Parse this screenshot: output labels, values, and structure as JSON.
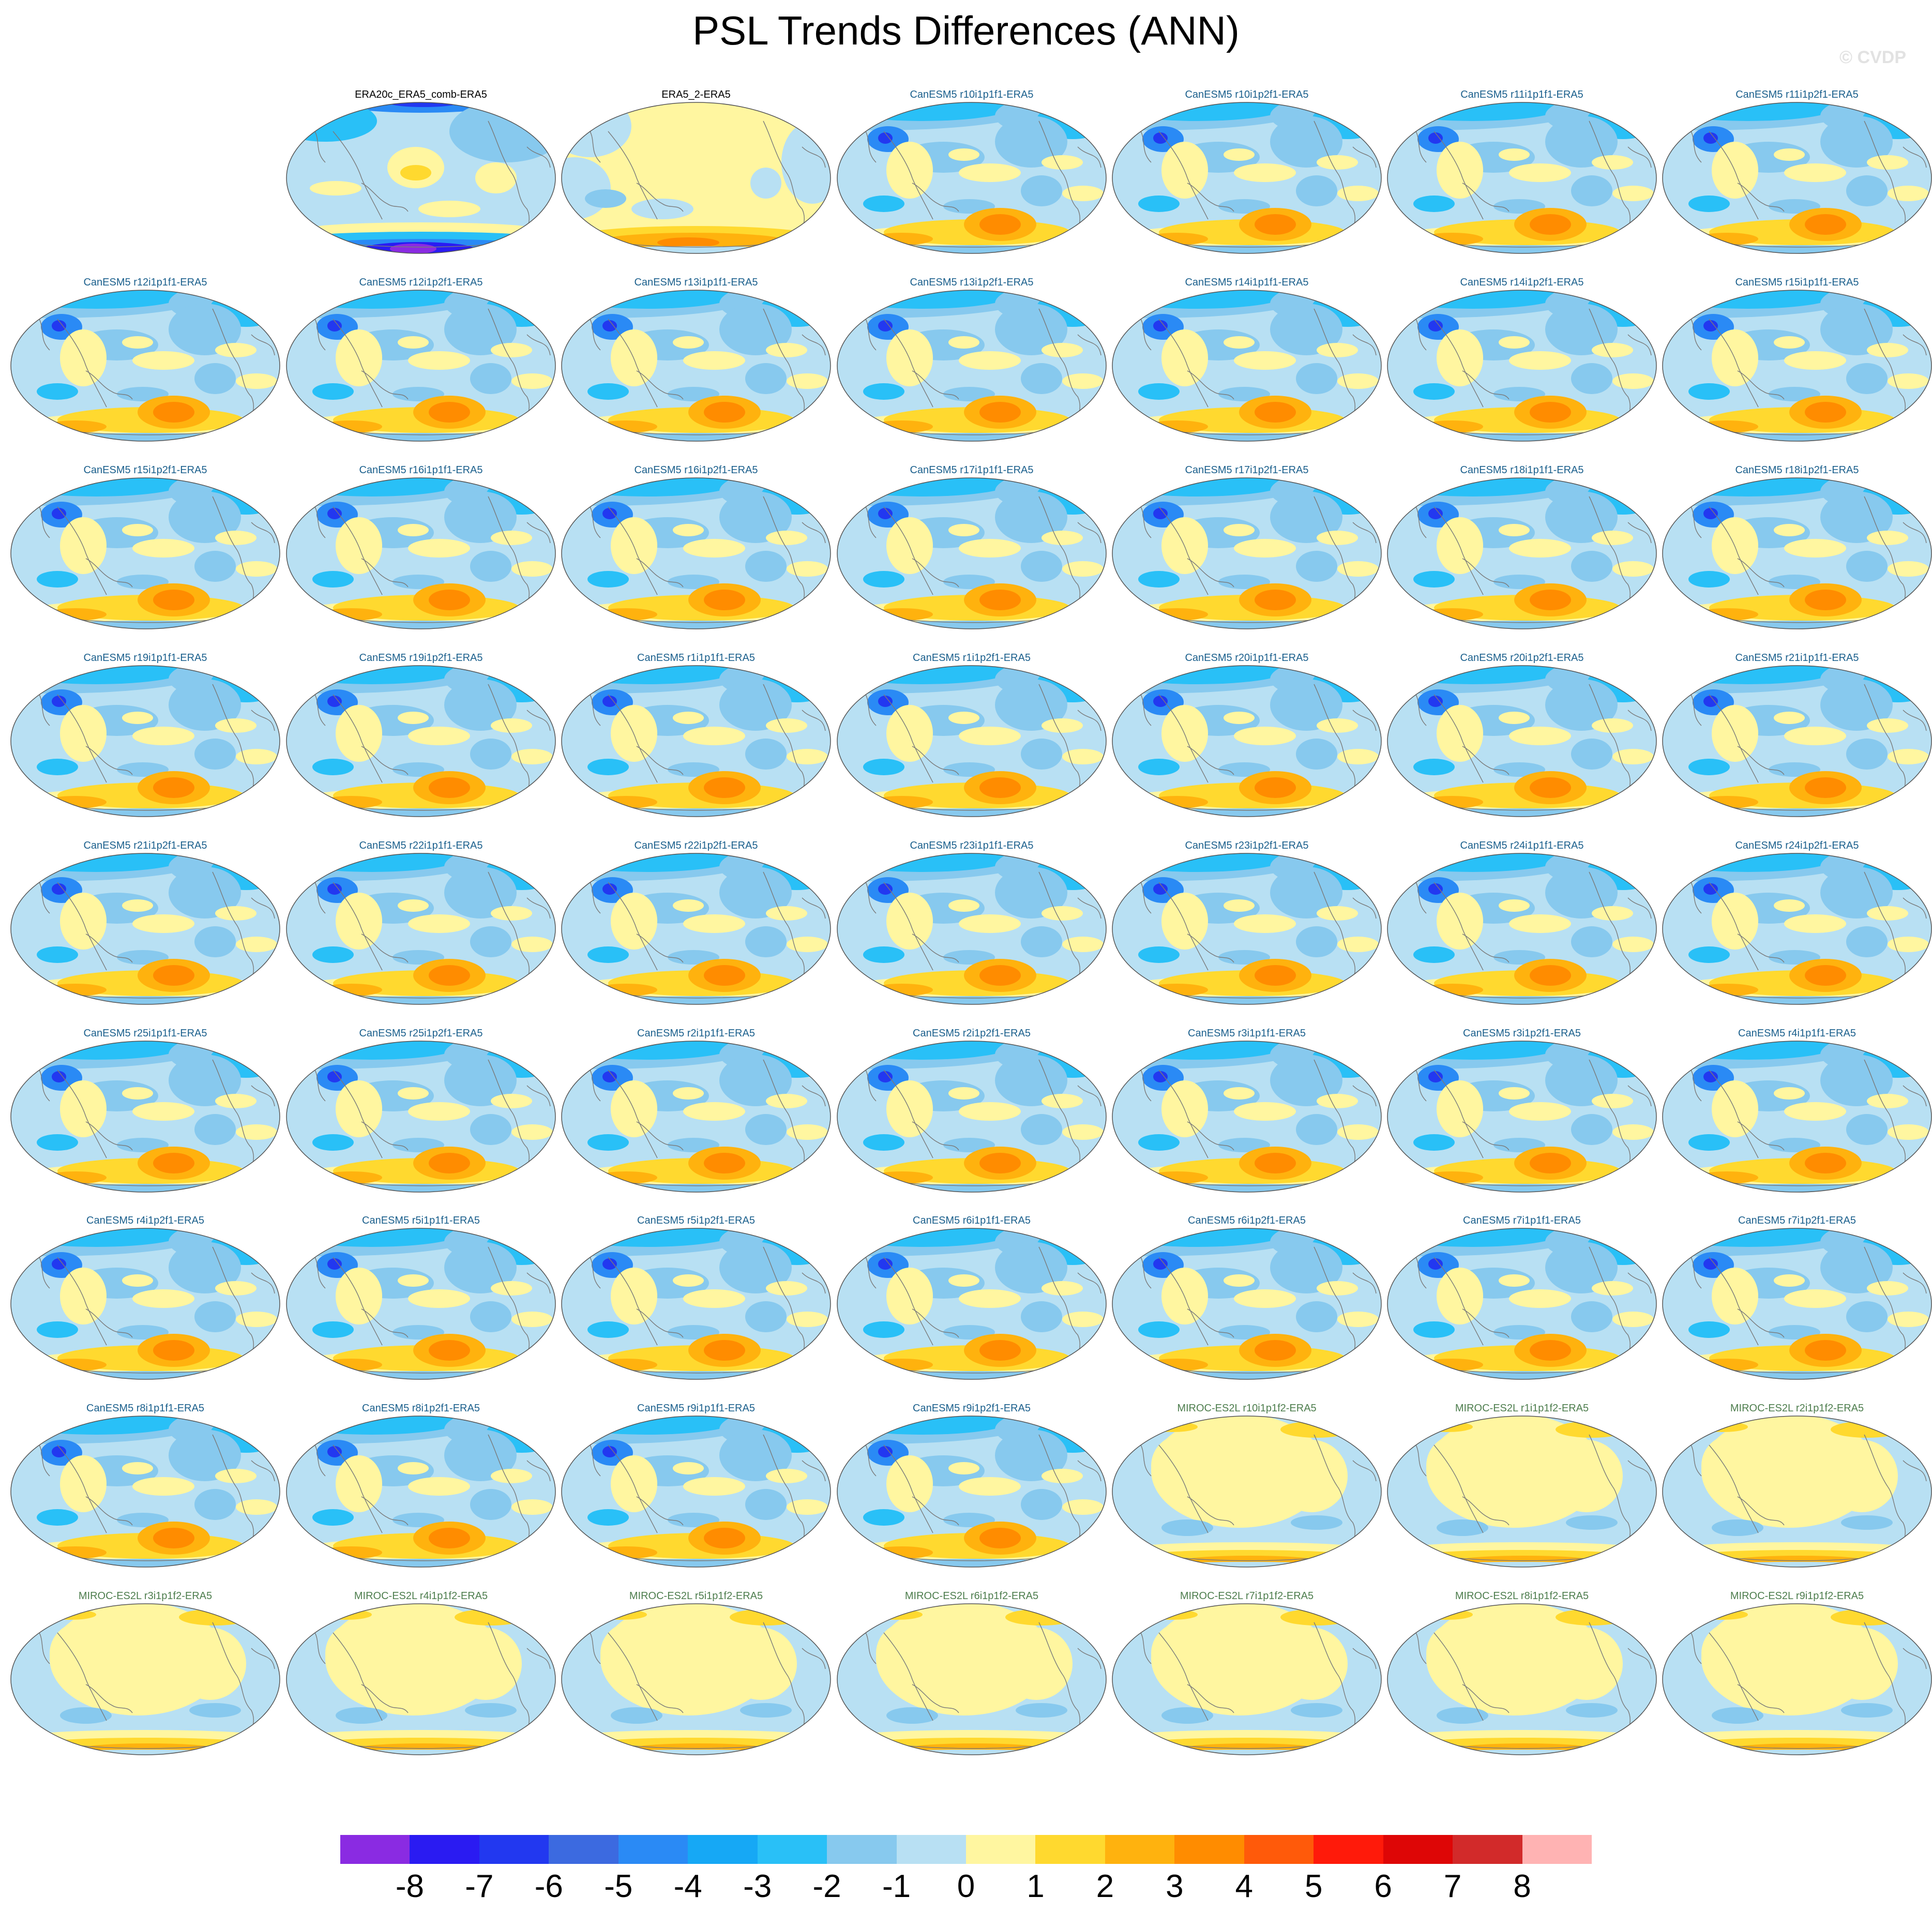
{
  "chart_data": {
    "type": "map_panel_grid",
    "title": "PSL Trends Differences (ANN)",
    "watermark": "© CVDP",
    "variable": "PSL trend difference",
    "season": "ANN",
    "layout": {
      "columns": 7,
      "rows": 9,
      "first_row_offset_columns": 1
    },
    "panels": [
      {
        "title": "ERA20c_ERA5_comb-ERA5",
        "group": "obs",
        "pattern": "era20c"
      },
      {
        "title": "ERA5_2-ERA5",
        "group": "obs",
        "pattern": "era5_2"
      },
      {
        "title": "CanESM5 r10i1p1f1-ERA5",
        "group": "canesm",
        "pattern": "canesm"
      },
      {
        "title": "CanESM5 r10i1p2f1-ERA5",
        "group": "canesm",
        "pattern": "canesm"
      },
      {
        "title": "CanESM5 r11i1p1f1-ERA5",
        "group": "canesm",
        "pattern": "canesm"
      },
      {
        "title": "CanESM5 r11i1p2f1-ERA5",
        "group": "canesm",
        "pattern": "canesm"
      },
      {
        "title": "CanESM5 r12i1p1f1-ERA5",
        "group": "canesm",
        "pattern": "canesm"
      },
      {
        "title": "CanESM5 r12i1p2f1-ERA5",
        "group": "canesm",
        "pattern": "canesm"
      },
      {
        "title": "CanESM5 r13i1p1f1-ERA5",
        "group": "canesm",
        "pattern": "canesm"
      },
      {
        "title": "CanESM5 r13i1p2f1-ERA5",
        "group": "canesm",
        "pattern": "canesm"
      },
      {
        "title": "CanESM5 r14i1p1f1-ERA5",
        "group": "canesm",
        "pattern": "canesm"
      },
      {
        "title": "CanESM5 r14i1p2f1-ERA5",
        "group": "canesm",
        "pattern": "canesm"
      },
      {
        "title": "CanESM5 r15i1p1f1-ERA5",
        "group": "canesm",
        "pattern": "canesm"
      },
      {
        "title": "CanESM5 r15i1p2f1-ERA5",
        "group": "canesm",
        "pattern": "canesm"
      },
      {
        "title": "CanESM5 r16i1p1f1-ERA5",
        "group": "canesm",
        "pattern": "canesm"
      },
      {
        "title": "CanESM5 r16i1p2f1-ERA5",
        "group": "canesm",
        "pattern": "canesm"
      },
      {
        "title": "CanESM5 r17i1p1f1-ERA5",
        "group": "canesm",
        "pattern": "canesm"
      },
      {
        "title": "CanESM5 r17i1p2f1-ERA5",
        "group": "canesm",
        "pattern": "canesm"
      },
      {
        "title": "CanESM5 r18i1p1f1-ERA5",
        "group": "canesm",
        "pattern": "canesm"
      },
      {
        "title": "CanESM5 r18i1p2f1-ERA5",
        "group": "canesm",
        "pattern": "canesm"
      },
      {
        "title": "CanESM5 r19i1p1f1-ERA5",
        "group": "canesm",
        "pattern": "canesm"
      },
      {
        "title": "CanESM5 r19i1p2f1-ERA5",
        "group": "canesm",
        "pattern": "canesm"
      },
      {
        "title": "CanESM5 r1i1p1f1-ERA5",
        "group": "canesm",
        "pattern": "canesm"
      },
      {
        "title": "CanESM5 r1i1p2f1-ERA5",
        "group": "canesm",
        "pattern": "canesm"
      },
      {
        "title": "CanESM5 r20i1p1f1-ERA5",
        "group": "canesm",
        "pattern": "canesm"
      },
      {
        "title": "CanESM5 r20i1p2f1-ERA5",
        "group": "canesm",
        "pattern": "canesm"
      },
      {
        "title": "CanESM5 r21i1p1f1-ERA5",
        "group": "canesm",
        "pattern": "canesm"
      },
      {
        "title": "CanESM5 r21i1p2f1-ERA5",
        "group": "canesm",
        "pattern": "canesm"
      },
      {
        "title": "CanESM5 r22i1p1f1-ERA5",
        "group": "canesm",
        "pattern": "canesm"
      },
      {
        "title": "CanESM5 r22i1p2f1-ERA5",
        "group": "canesm",
        "pattern": "canesm"
      },
      {
        "title": "CanESM5 r23i1p1f1-ERA5",
        "group": "canesm",
        "pattern": "canesm"
      },
      {
        "title": "CanESM5 r23i1p2f1-ERA5",
        "group": "canesm",
        "pattern": "canesm"
      },
      {
        "title": "CanESM5 r24i1p1f1-ERA5",
        "group": "canesm",
        "pattern": "canesm"
      },
      {
        "title": "CanESM5 r24i1p2f1-ERA5",
        "group": "canesm",
        "pattern": "canesm"
      },
      {
        "title": "CanESM5 r25i1p1f1-ERA5",
        "group": "canesm",
        "pattern": "canesm"
      },
      {
        "title": "CanESM5 r25i1p2f1-ERA5",
        "group": "canesm",
        "pattern": "canesm"
      },
      {
        "title": "CanESM5 r2i1p1f1-ERA5",
        "group": "canesm",
        "pattern": "canesm"
      },
      {
        "title": "CanESM5 r2i1p2f1-ERA5",
        "group": "canesm",
        "pattern": "canesm"
      },
      {
        "title": "CanESM5 r3i1p1f1-ERA5",
        "group": "canesm",
        "pattern": "canesm"
      },
      {
        "title": "CanESM5 r3i1p2f1-ERA5",
        "group": "canesm",
        "pattern": "canesm"
      },
      {
        "title": "CanESM5 r4i1p1f1-ERA5",
        "group": "canesm",
        "pattern": "canesm"
      },
      {
        "title": "CanESM5 r4i1p2f1-ERA5",
        "group": "canesm",
        "pattern": "canesm"
      },
      {
        "title": "CanESM5 r5i1p1f1-ERA5",
        "group": "canesm",
        "pattern": "canesm"
      },
      {
        "title": "CanESM5 r5i1p2f1-ERA5",
        "group": "canesm",
        "pattern": "canesm"
      },
      {
        "title": "CanESM5 r6i1p1f1-ERA5",
        "group": "canesm",
        "pattern": "canesm"
      },
      {
        "title": "CanESM5 r6i1p2f1-ERA5",
        "group": "canesm",
        "pattern": "canesm"
      },
      {
        "title": "CanESM5 r7i1p1f1-ERA5",
        "group": "canesm",
        "pattern": "canesm"
      },
      {
        "title": "CanESM5 r7i1p2f1-ERA5",
        "group": "canesm",
        "pattern": "canesm"
      },
      {
        "title": "CanESM5 r8i1p1f1-ERA5",
        "group": "canesm",
        "pattern": "canesm"
      },
      {
        "title": "CanESM5 r8i1p2f1-ERA5",
        "group": "canesm",
        "pattern": "canesm"
      },
      {
        "title": "CanESM5 r9i1p1f1-ERA5",
        "group": "canesm",
        "pattern": "canesm"
      },
      {
        "title": "CanESM5 r9i1p2f1-ERA5",
        "group": "canesm",
        "pattern": "canesm"
      },
      {
        "title": "MIROC-ES2L r10i1p1f2-ERA5",
        "group": "miroc",
        "pattern": "miroc"
      },
      {
        "title": "MIROC-ES2L r1i1p1f2-ERA5",
        "group": "miroc",
        "pattern": "miroc"
      },
      {
        "title": "MIROC-ES2L r2i1p1f2-ERA5",
        "group": "miroc",
        "pattern": "miroc"
      },
      {
        "title": "MIROC-ES2L r3i1p1f2-ERA5",
        "group": "miroc",
        "pattern": "miroc"
      },
      {
        "title": "MIROC-ES2L r4i1p1f2-ERA5",
        "group": "miroc",
        "pattern": "miroc"
      },
      {
        "title": "MIROC-ES2L r5i1p1f2-ERA5",
        "group": "miroc",
        "pattern": "miroc"
      },
      {
        "title": "MIROC-ES2L r6i1p1f2-ERA5",
        "group": "miroc",
        "pattern": "miroc"
      },
      {
        "title": "MIROC-ES2L r7i1p1f2-ERA5",
        "group": "miroc",
        "pattern": "miroc"
      },
      {
        "title": "MIROC-ES2L r8i1p1f2-ERA5",
        "group": "miroc",
        "pattern": "miroc"
      },
      {
        "title": "MIROC-ES2L r9i1p1f2-ERA5",
        "group": "miroc",
        "pattern": "miroc"
      }
    ],
    "colorbar": {
      "labels": [
        "-8",
        "-7",
        "-6",
        "-5",
        "-4",
        "-3",
        "-2",
        "-1",
        "0",
        "1",
        "2",
        "3",
        "4",
        "5",
        "6",
        "7",
        "8"
      ],
      "colors": [
        "#8a2be2",
        "#2a1bf2",
        "#2238f0",
        "#3c6ae0",
        "#2a8af5",
        "#16a8f5",
        "#29c0f7",
        "#87c9ee",
        "#b8e0f3",
        "#fff6a0",
        "#ffd92f",
        "#ffb20e",
        "#ff8c00",
        "#ff5a0a",
        "#ff1a0a",
        "#de0606",
        "#d22a2a",
        "#ffb3b3"
      ]
    }
  }
}
